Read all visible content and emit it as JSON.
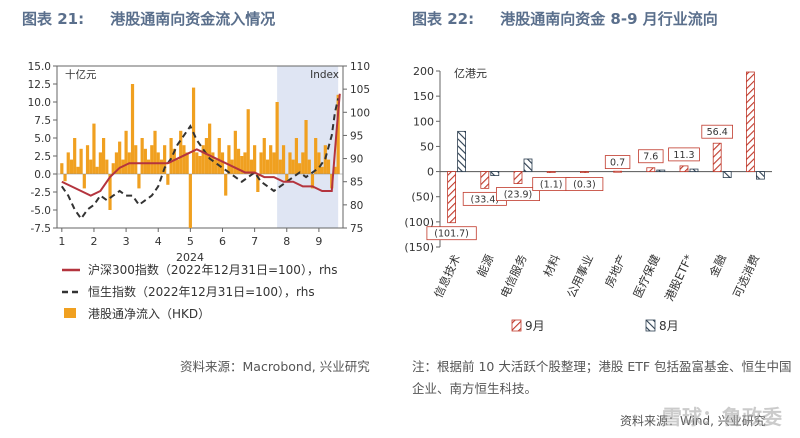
{
  "left_title": "图表 21:     港股通南向资金流入情况",
  "right_title": "图表 22:     港股通南向资金 8-9 月行业流向",
  "chart_data": [
    {
      "type": "line",
      "y_left_unit": "十亿元",
      "y_right_unit": "Index",
      "x_tick_labels": [
        "1",
        "2",
        "3",
        "4",
        "5",
        "6",
        "7",
        "8",
        "9"
      ],
      "x_year_label": "2024",
      "ylim_left": [
        -7.5,
        15.0
      ],
      "ylim_right": [
        75,
        110
      ],
      "y_left_ticks": [
        "15.0",
        "12.5",
        "10.0",
        "7.5",
        "5.0",
        "2.5",
        "0.0",
        "-2.5",
        "-5.0",
        "-7.5"
      ],
      "y_right_ticks": [
        "110",
        "105",
        "100",
        "95",
        "90",
        "85",
        "80",
        "75"
      ],
      "shaded_period_months": [
        7.7,
        9.6
      ],
      "legend": [
        "沪深300指数（2022年12月31日=100），rhs",
        "恒生指数（2022年12月31日=100），rhs",
        "港股通净流入（HKD）"
      ],
      "colors": {
        "csi300": "#b4343e",
        "hsi": "#333333",
        "flow": "#f0a020",
        "shade": "#dfe5f3"
      },
      "series": [
        {
          "name": "沪深300指数（2022年12月31日=100），rhs",
          "axis": "right",
          "x": [
            1.0,
            1.3,
            1.6,
            1.9,
            2.2,
            2.5,
            2.8,
            3.1,
            3.4,
            3.7,
            4.0,
            4.3,
            4.6,
            4.9,
            5.2,
            5.5,
            5.8,
            6.1,
            6.4,
            6.7,
            7.0,
            7.3,
            7.6,
            7.9,
            8.2,
            8.5,
            8.8,
            9.1,
            9.4,
            9.55,
            9.65
          ],
          "values": [
            85,
            84,
            83,
            82,
            83,
            86,
            88,
            89,
            89,
            89,
            89,
            89,
            90,
            91,
            92,
            91,
            90,
            89,
            88,
            87,
            87,
            86,
            86,
            85,
            85,
            84,
            84,
            83,
            83,
            96,
            104
          ]
        },
        {
          "name": "恒生指数（2022年12月31日=100），rhs",
          "axis": "right",
          "x": [
            1.0,
            1.2,
            1.4,
            1.6,
            1.8,
            2.0,
            2.2,
            2.4,
            2.6,
            2.8,
            3.0,
            3.2,
            3.4,
            3.6,
            3.8,
            4.0,
            4.2,
            4.4,
            4.6,
            4.8,
            5.0,
            5.2,
            5.4,
            5.6,
            5.8,
            6.0,
            6.2,
            6.4,
            6.6,
            6.8,
            7.0,
            7.2,
            7.4,
            7.6,
            7.8,
            8.0,
            8.2,
            8.4,
            8.6,
            8.8,
            9.0,
            9.2,
            9.4,
            9.5,
            9.6
          ],
          "values": [
            84,
            82,
            79,
            77,
            79,
            80,
            82,
            81,
            82,
            83,
            82,
            82,
            80,
            81,
            82,
            84,
            88,
            90,
            93,
            95,
            97,
            94,
            92,
            90,
            89,
            88,
            87,
            86,
            85,
            86,
            87,
            85,
            84,
            83,
            84,
            85,
            86,
            87,
            86,
            87,
            88,
            90,
            95,
            100,
            103
          ]
        },
        {
          "name": "港股通净流入（HKD）",
          "axis": "left",
          "x": [
            1.0,
            1.1,
            1.2,
            1.3,
            1.4,
            1.5,
            1.6,
            1.7,
            1.8,
            1.9,
            2.0,
            2.1,
            2.2,
            2.3,
            2.4,
            2.5,
            2.6,
            2.7,
            2.8,
            2.9,
            3.0,
            3.1,
            3.2,
            3.3,
            3.4,
            3.5,
            3.6,
            3.7,
            3.8,
            3.9,
            4.0,
            4.1,
            4.2,
            4.3,
            4.4,
            4.5,
            4.6,
            4.7,
            4.8,
            4.9,
            5.0,
            5.1,
            5.2,
            5.3,
            5.4,
            5.5,
            5.6,
            5.7,
            5.8,
            5.9,
            6.0,
            6.1,
            6.2,
            6.3,
            6.4,
            6.5,
            6.6,
            6.7,
            6.8,
            6.9,
            7.0,
            7.1,
            7.2,
            7.3,
            7.4,
            7.5,
            7.6,
            7.7,
            7.8,
            7.9,
            8.0,
            8.1,
            8.2,
            8.3,
            8.4,
            8.5,
            8.6,
            8.7,
            8.8,
            8.9,
            9.0,
            9.1,
            9.2,
            9.3,
            9.4,
            9.5,
            9.6
          ],
          "values": [
            1.5,
            -1.0,
            3.0,
            2.0,
            5.0,
            1.0,
            3.5,
            -2.0,
            4.0,
            2.0,
            7.0,
            1.0,
            3.0,
            5.0,
            2.0,
            -5.0,
            1.5,
            3.0,
            4.5,
            2.0,
            6.0,
            3.0,
            12.5,
            4.0,
            -2.0,
            5.0,
            3.5,
            2.0,
            4.0,
            6.0,
            3.0,
            2.0,
            4.0,
            -1.5,
            5.0,
            3.5,
            2.0,
            6.0,
            4.0,
            3.0,
            -7.5,
            12.0,
            3.0,
            2.5,
            4.0,
            5.0,
            7.0,
            3.0,
            2.0,
            5.0,
            3.0,
            -3.0,
            4.0,
            2.0,
            6.0,
            3.5,
            2.5,
            3.0,
            9.0,
            2.0,
            4.0,
            -2.5,
            3.0,
            5.0,
            2.0,
            4.0,
            3.0,
            10.0,
            2.0,
            4.0,
            -1.0,
            3.0,
            2.0,
            5.0,
            1.5,
            3.0,
            7.5,
            2.0,
            -2.0,
            5.0,
            3.0,
            1.0,
            4.0,
            2.0,
            -2.0,
            1.0,
            11.0
          ]
        }
      ]
    },
    {
      "type": "bar",
      "y_unit": "亿港元",
      "ylim": [
        -150,
        200
      ],
      "y_ticks": [
        "200",
        "150",
        "100",
        "50",
        "0",
        "(50)",
        "(100)",
        "(150)"
      ],
      "categories": [
        "信息技术",
        "能源",
        "电信服务",
        "材料",
        "公用事业",
        "房地产",
        "医疗保健",
        "港股ETF*",
        "金融",
        "可选消费"
      ],
      "legend": [
        "9月",
        "8月"
      ],
      "colors": {
        "sep": "#c0392b",
        "aug": "#2c3e50"
      },
      "series": [
        {
          "name": "9月",
          "values": [
            -101.7,
            -33.4,
            -23.9,
            -1.1,
            -0.3,
            0.7,
            7.6,
            11.3,
            56.4,
            198.0
          ]
        },
        {
          "name": "8月",
          "values": [
            80.0,
            -8.0,
            25.0,
            0.0,
            0.0,
            0.0,
            3.0,
            5.0,
            -12.0,
            -15.0
          ]
        }
      ],
      "data_labels": [
        "(101.7)",
        "(33.4)",
        "(23.9)",
        "(1.1)",
        "(0.3)",
        "0.7",
        "7.6",
        "11.3",
        "56.4"
      ]
    }
  ],
  "left_source": "资料来源：Macrobond, 兴业研究",
  "right_note": "注：根据前 10 大活跃个股整理；港股 ETF 包括盈富基金、恒生中国企业、南方恒生科技。",
  "right_source": "资料来源：Wind, 兴业研究",
  "watermark": "雪球：鲁政委"
}
